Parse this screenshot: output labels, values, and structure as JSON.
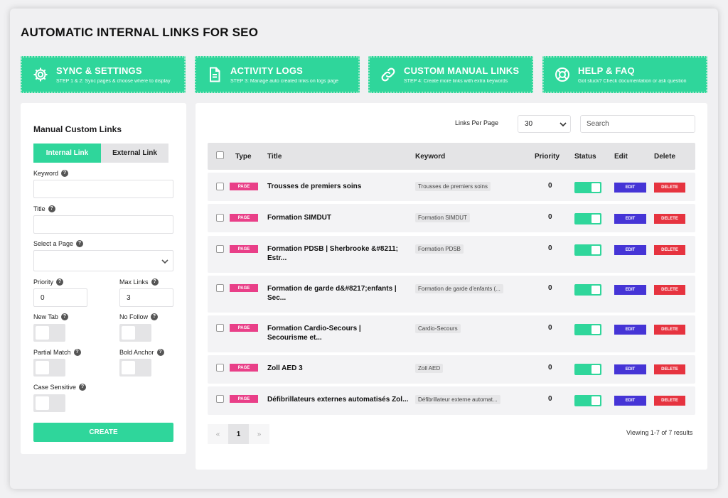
{
  "page": {
    "title": "AUTOMATIC INTERNAL LINKS FOR SEO"
  },
  "colors": {
    "accent": "#2fd69b",
    "page_badge": "#e93f88",
    "edit": "#4534d6",
    "delete": "#e6333f"
  },
  "nav": [
    {
      "title": "SYNC & SETTINGS",
      "subtitle": "STEP 1 & 2: Sync pages & choose where to display",
      "icon": "gear-icon"
    },
    {
      "title": "ACTIVITY LOGS",
      "subtitle": "STEP 3: Manage auto created links on logs page",
      "icon": "document-icon"
    },
    {
      "title": "CUSTOM MANUAL LINKS",
      "subtitle": "STEP 4: Create more links with extra keywords",
      "icon": "link-icon"
    },
    {
      "title": "HELP & FAQ",
      "subtitle": "Got stuck? Check documentation or ask question",
      "icon": "lifebuoy-icon"
    }
  ],
  "form": {
    "title": "Manual Custom Links",
    "tabs": {
      "internal": "Internal Link",
      "external": "External Link"
    },
    "keyword_label": "Keyword",
    "keyword_value": "",
    "title_label": "Title",
    "title_value": "",
    "page_label": "Select a Page",
    "page_value": "",
    "priority_label": "Priority",
    "priority_value": "0",
    "maxlinks_label": "Max Links",
    "maxlinks_value": "3",
    "newtab_label": "New Tab",
    "nofollow_label": "No Follow",
    "partial_label": "Partial Match",
    "bold_label": "Bold Anchor",
    "case_label": "Case Sensitive",
    "help_glyph": "?",
    "create_label": "CREATE"
  },
  "table": {
    "links_per_page_label": "Links Per Page",
    "links_per_page_value": "30",
    "search_placeholder": "Search",
    "headers": {
      "type": "Type",
      "title": "Title",
      "keyword": "Keyword",
      "priority": "Priority",
      "status": "Status",
      "edit": "Edit",
      "delete": "Delete"
    },
    "rows": [
      {
        "type": "PAGE",
        "title": "Trousses de premiers soins",
        "keyword": "Trousses de premiers soins",
        "priority": "0",
        "edit": "EDIT",
        "delete": "DELETE"
      },
      {
        "type": "PAGE",
        "title": "Formation SIMDUT",
        "keyword": "Formation SIMDUT",
        "priority": "0",
        "edit": "EDIT",
        "delete": "DELETE"
      },
      {
        "type": "PAGE",
        "title": "Formation PDSB | Sherbrooke &#8211; Estr...",
        "keyword": "Formation PDSB",
        "priority": "0",
        "edit": "EDIT",
        "delete": "DELETE"
      },
      {
        "type": "PAGE",
        "title": "Formation de garde d&#8217;enfants | Sec...",
        "keyword": "Formation de garde d'enfants (...",
        "priority": "0",
        "edit": "EDIT",
        "delete": "DELETE"
      },
      {
        "type": "PAGE",
        "title": "Formation Cardio-Secours | Secourisme et...",
        "keyword": "Cardio-Secours",
        "priority": "0",
        "edit": "EDIT",
        "delete": "DELETE"
      },
      {
        "type": "PAGE",
        "title": "Zoll AED 3",
        "keyword": "Zoll AED",
        "priority": "0",
        "edit": "EDIT",
        "delete": "DELETE"
      },
      {
        "type": "PAGE",
        "title": "Défibrillateurs externes automatisés Zol...",
        "keyword": "Défibrillateur externe automat...",
        "priority": "0",
        "edit": "EDIT",
        "delete": "DELETE"
      }
    ],
    "pagination": {
      "prev": "«",
      "current": "1",
      "next": "»"
    },
    "viewing": "Viewing 1-7 of 7 results"
  }
}
